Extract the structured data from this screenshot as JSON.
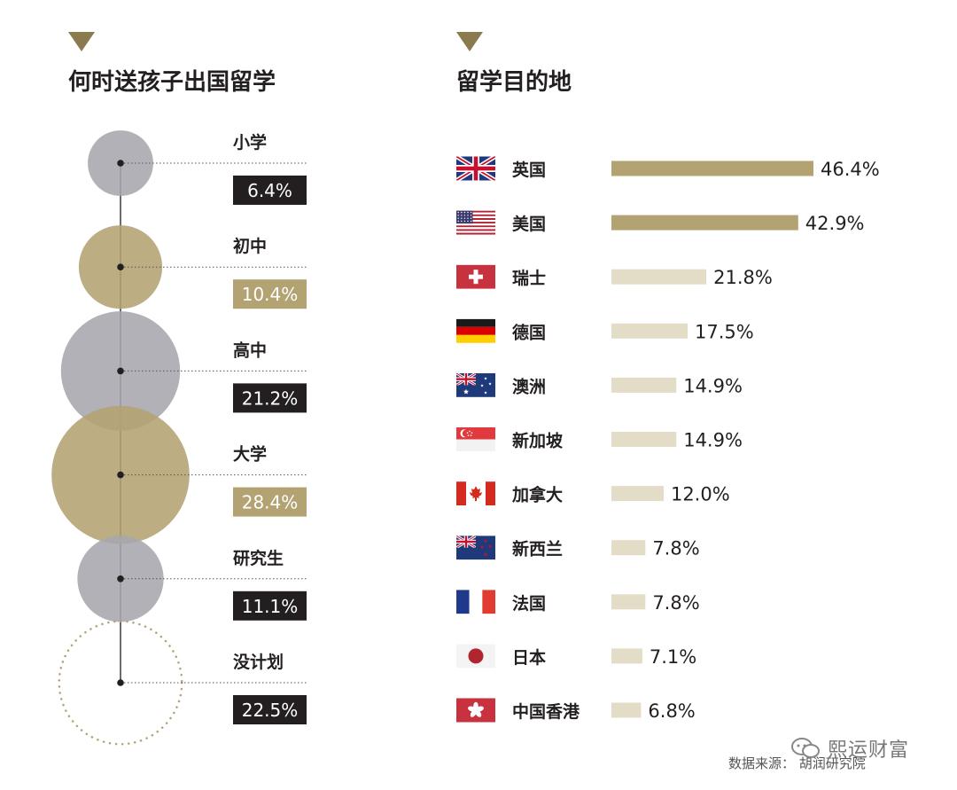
{
  "left": {
    "title": "何时送孩子出国留学"
  },
  "right": {
    "title": "留学目的地"
  },
  "source": "数据来源： 胡润研究院",
  "watermark": "熙运财富",
  "colors": {
    "gold": "#b3a272",
    "gold_dark": "#8a7a4e",
    "gray": "#a7a6ad",
    "light": "#e3dcc6",
    "label_bg": "#231f20",
    "title_triangle": "#8a7a4e"
  },
  "chart_data": [
    {
      "type": "bubble",
      "title": "何时送孩子出国留学",
      "unit": "%",
      "series": [
        {
          "label": "小学",
          "value": 6.4,
          "display": "6.4%",
          "style": "gray"
        },
        {
          "label": "初中",
          "value": 10.4,
          "display": "10.4%",
          "style": "gold"
        },
        {
          "label": "高中",
          "value": 21.2,
          "display": "21.2%",
          "style": "gray"
        },
        {
          "label": "大学",
          "value": 28.4,
          "display": "28.4%",
          "style": "gold"
        },
        {
          "label": "研究生",
          "value": 11.1,
          "display": "11.1%",
          "style": "gray"
        },
        {
          "label": "没计划",
          "value": 22.5,
          "display": "22.5%",
          "style": "dotted"
        }
      ]
    },
    {
      "type": "bar",
      "orientation": "horizontal",
      "title": "留学目的地",
      "unit": "%",
      "categories": [
        "英国",
        "美国",
        "瑞士",
        "德国",
        "澳洲",
        "新加坡",
        "加拿大",
        "新西兰",
        "法国",
        "日本",
        "中国香港"
      ],
      "flags": [
        "uk",
        "us",
        "ch",
        "de",
        "au",
        "sg",
        "ca",
        "nz",
        "fr",
        "jp",
        "hk"
      ],
      "values": [
        46.4,
        42.9,
        21.8,
        17.5,
        14.9,
        14.9,
        12.0,
        7.8,
        7.8,
        7.1,
        6.8
      ],
      "labels": [
        "46.4%",
        "42.9%",
        "21.8%",
        "17.5%",
        "14.9%",
        "14.9%",
        "12.0%",
        "7.8%",
        "7.8%",
        "7.1%",
        "6.8%"
      ],
      "highlight_count": 2
    }
  ]
}
